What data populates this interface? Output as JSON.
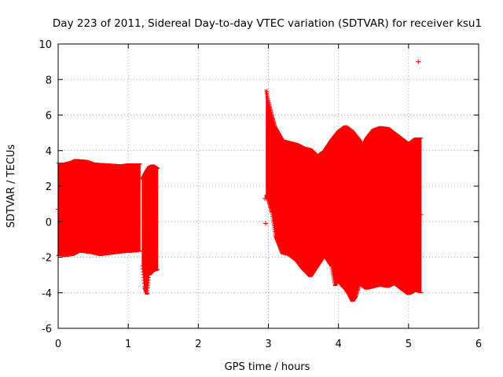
{
  "chart_data": {
    "type": "scatter",
    "title": "Day 223 of 2011, Sidereal Day-to-day VTEC variation (SDTVAR) for receiver ksu1",
    "xlabel": "GPS time / hours",
    "ylabel": "SDTVAR / TECUs",
    "xlim": [
      0,
      6
    ],
    "ylim": [
      -6,
      10
    ],
    "x_ticks": [
      "0",
      "1",
      "2",
      "3",
      "4",
      "5",
      "6"
    ],
    "y_ticks": [
      "-6",
      "-4",
      "-2",
      "0",
      "2",
      "4",
      "6",
      "8",
      "10"
    ],
    "grid": true,
    "marker": "plus",
    "series_color": "#ff0000",
    "bands": [
      {
        "x_start": 0.0,
        "x_end": 1.17,
        "upper": [
          [
            0.0,
            3.3
          ],
          [
            0.1,
            3.3
          ],
          [
            0.2,
            3.4
          ],
          [
            0.25,
            3.5
          ],
          [
            0.4,
            3.45
          ],
          [
            0.5,
            3.3
          ],
          [
            0.7,
            3.25
          ],
          [
            0.9,
            3.2
          ],
          [
            1.0,
            3.25
          ],
          [
            1.17,
            3.25
          ]
        ],
        "lower": [
          [
            0.0,
            -1.9
          ],
          [
            0.1,
            -1.95
          ],
          [
            0.2,
            -1.9
          ],
          [
            0.3,
            -1.7
          ],
          [
            0.5,
            -1.8
          ],
          [
            0.6,
            -1.9
          ],
          [
            0.8,
            -1.8
          ],
          [
            0.9,
            -1.75
          ],
          [
            1.1,
            -1.7
          ],
          [
            1.17,
            -1.65
          ]
        ]
      },
      {
        "x_start": 1.2,
        "x_end": 1.42,
        "upper": [
          [
            1.2,
            2.4
          ],
          [
            1.25,
            2.8
          ],
          [
            1.3,
            3.1
          ],
          [
            1.35,
            3.2
          ],
          [
            1.42,
            3.0
          ]
        ],
        "lower": [
          [
            1.2,
            -2.5
          ],
          [
            1.23,
            -3.7
          ],
          [
            1.27,
            -4.1
          ],
          [
            1.3,
            -3.0
          ],
          [
            1.35,
            -2.8
          ],
          [
            1.42,
            -2.7
          ]
        ]
      },
      {
        "x_start": 2.97,
        "x_end": 5.18,
        "upper": [
          [
            2.97,
            7.4
          ],
          [
            3.0,
            6.8
          ],
          [
            3.05,
            6.0
          ],
          [
            3.1,
            5.3
          ],
          [
            3.2,
            4.6
          ],
          [
            3.3,
            4.5
          ],
          [
            3.4,
            4.4
          ],
          [
            3.5,
            4.2
          ],
          [
            3.6,
            4.1
          ],
          [
            3.7,
            3.7
          ],
          [
            3.8,
            4.0
          ],
          [
            3.9,
            4.6
          ],
          [
            4.0,
            5.1
          ],
          [
            4.1,
            5.4
          ],
          [
            4.2,
            5.1
          ],
          [
            4.3,
            4.6
          ],
          [
            4.35,
            4.3
          ],
          [
            4.4,
            4.7
          ],
          [
            4.5,
            5.2
          ],
          [
            4.6,
            5.35
          ],
          [
            4.7,
            5.3
          ],
          [
            4.8,
            5.0
          ],
          [
            4.9,
            4.7
          ],
          [
            5.0,
            4.4
          ],
          [
            5.1,
            4.7
          ],
          [
            5.18,
            4.7
          ]
        ],
        "lower": [
          [
            2.97,
            1.5
          ],
          [
            3.0,
            1.2
          ],
          [
            3.05,
            0.5
          ],
          [
            3.1,
            -0.8
          ],
          [
            3.2,
            -1.8
          ],
          [
            3.3,
            -1.9
          ],
          [
            3.4,
            -2.2
          ],
          [
            3.5,
            -2.7
          ],
          [
            3.6,
            -3.1
          ],
          [
            3.7,
            -2.5
          ],
          [
            3.8,
            -1.9
          ],
          [
            3.9,
            -2.5
          ],
          [
            3.95,
            -3.6
          ],
          [
            4.0,
            -3.3
          ],
          [
            4.05,
            -3.6
          ],
          [
            4.1,
            -3.8
          ],
          [
            4.15,
            -4.1
          ],
          [
            4.2,
            -4.5
          ],
          [
            4.25,
            -4.2
          ],
          [
            4.3,
            -3.5
          ],
          [
            4.4,
            -3.8
          ],
          [
            4.5,
            -3.7
          ],
          [
            4.6,
            -3.6
          ],
          [
            4.7,
            -3.7
          ],
          [
            4.8,
            -3.5
          ],
          [
            4.9,
            -3.8
          ],
          [
            5.0,
            -4.1
          ],
          [
            5.1,
            -3.9
          ],
          [
            5.18,
            -4.0
          ]
        ]
      }
    ],
    "isolated_points": [
      {
        "x": 2.95,
        "y": 1.3
      },
      {
        "x": 2.96,
        "y": -0.1
      },
      {
        "x": 5.14,
        "y": 9.0
      },
      {
        "x": 0.0,
        "y": 0.7
      },
      {
        "x": 5.18,
        "y": 0.4
      }
    ]
  }
}
